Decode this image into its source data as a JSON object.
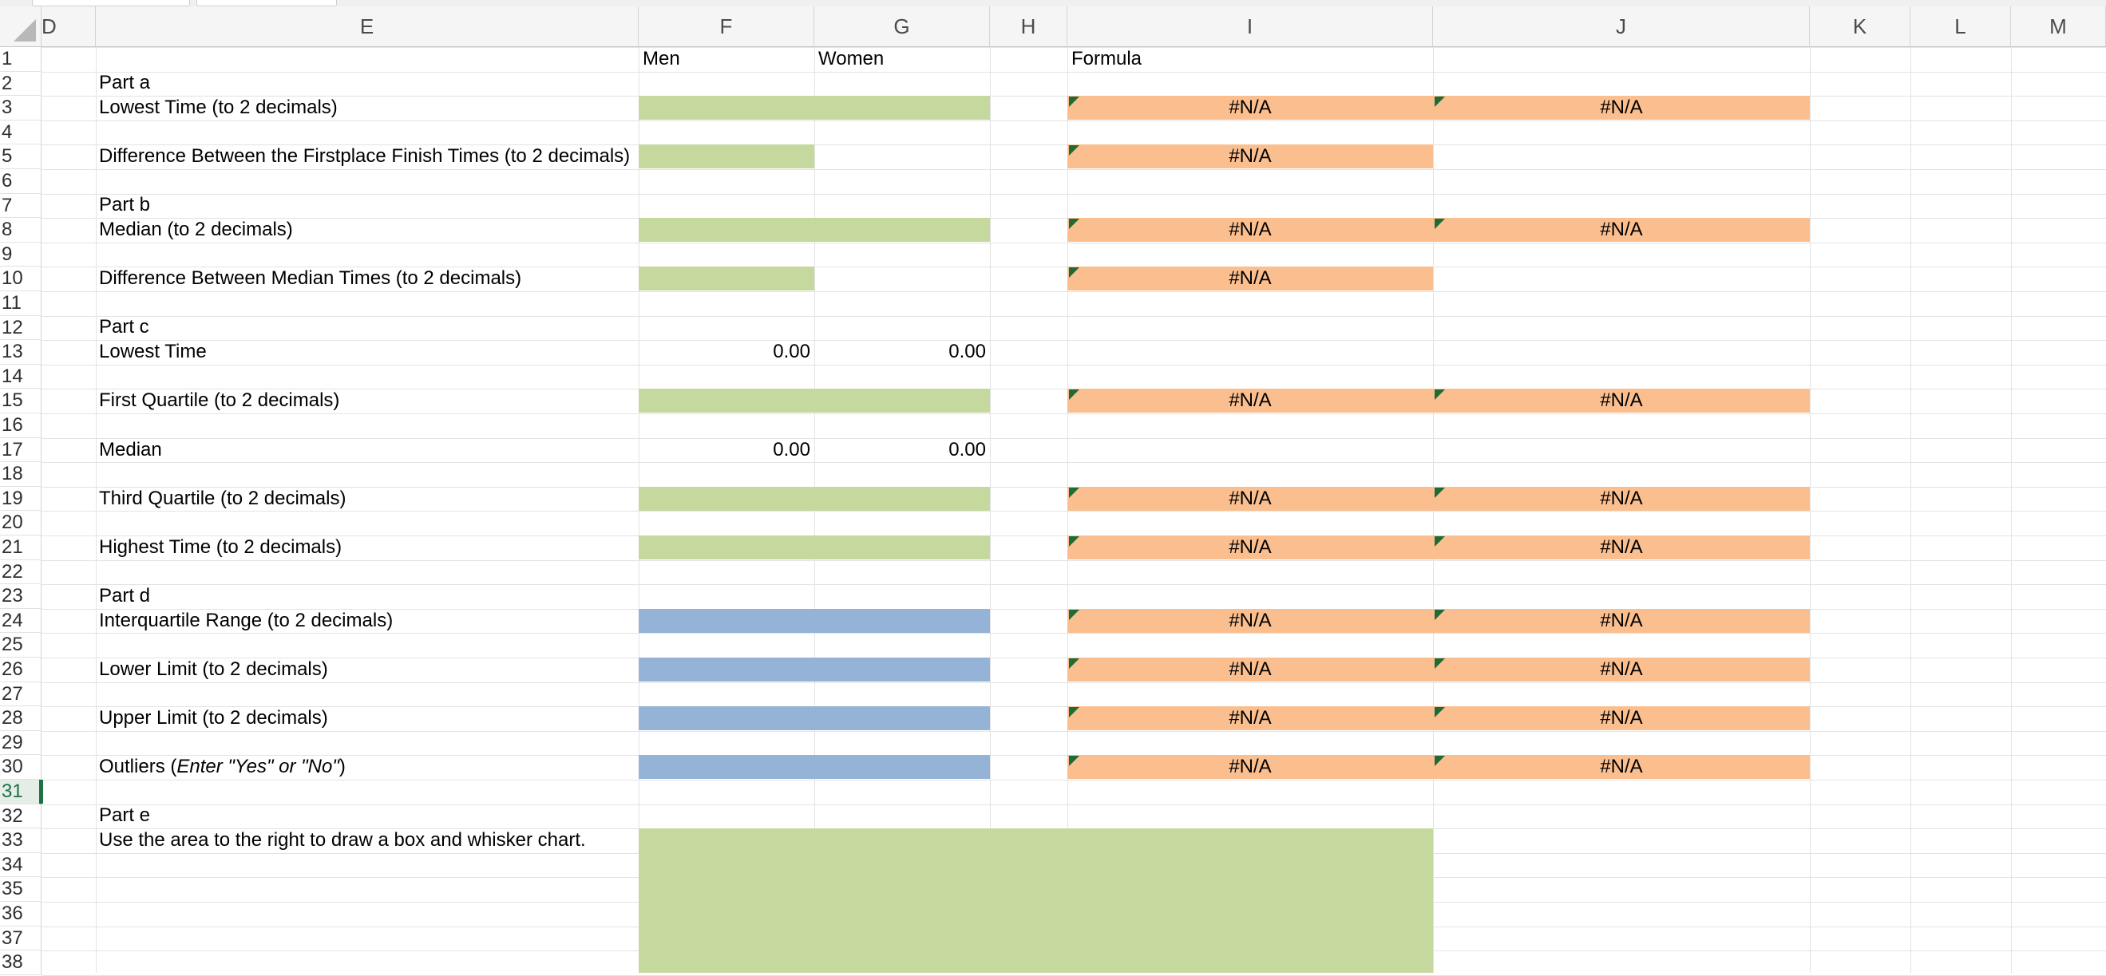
{
  "sheet": {
    "columns": [
      {
        "letter": "D"
      },
      {
        "letter": "E"
      },
      {
        "letter": "F"
      },
      {
        "letter": "G"
      },
      {
        "letter": "H"
      },
      {
        "letter": "I"
      },
      {
        "letter": "J"
      },
      {
        "letter": "K"
      },
      {
        "letter": "L"
      },
      {
        "letter": "M"
      }
    ],
    "rows": [
      "1",
      "2",
      "3",
      "4",
      "5",
      "6",
      "7",
      "8",
      "9",
      "10",
      "11",
      "12",
      "13",
      "14",
      "15",
      "16",
      "17",
      "18",
      "19",
      "20",
      "21",
      "22",
      "23",
      "24",
      "25",
      "26",
      "27",
      "28",
      "29",
      "30",
      "31",
      "32",
      "33",
      "34",
      "35",
      "36",
      "37",
      "38"
    ],
    "active_row": "31"
  },
  "cells": {
    "f1": "Men",
    "g1": "Women",
    "i1": "Formula",
    "e2": "Part a",
    "e3": "Lowest Time (to 2 decimals)",
    "e5": "Difference Between the Firstplace Finish Times (to 2 decimals)",
    "e7": "Part b",
    "e8": "Median (to 2 decimals)",
    "e10": "Difference Between Median Times (to 2 decimals)",
    "e12": "Part c",
    "e13": "Lowest Time",
    "f13": "0.00",
    "g13": "0.00",
    "e15": "First Quartile (to 2 decimals)",
    "e17": "Median",
    "f17": "0.00",
    "g17": "0.00",
    "e19": "Third Quartile (to 2 decimals)",
    "e21": "Highest Time (to 2 decimals)",
    "e23": "Part d",
    "e24": "Interquartile Range (to 2 decimals)",
    "e26": "Lower Limit (to 2 decimals)",
    "e28": "Upper Limit (to 2 decimals)",
    "e30_prefix": "Outliers (",
    "e30_italic": "Enter \"Yes\" or \"No\"",
    "e30_suffix": ")",
    "e32": "Part e",
    "e33": "Use the area to the right to draw a box and whisker chart.",
    "error_value": "#N/A"
  },
  "colors": {
    "green_fill": "#c5d99e",
    "blue_fill": "#95b3d7",
    "orange_fill": "#fbbf8f",
    "error_flag": "#1e6b36"
  }
}
